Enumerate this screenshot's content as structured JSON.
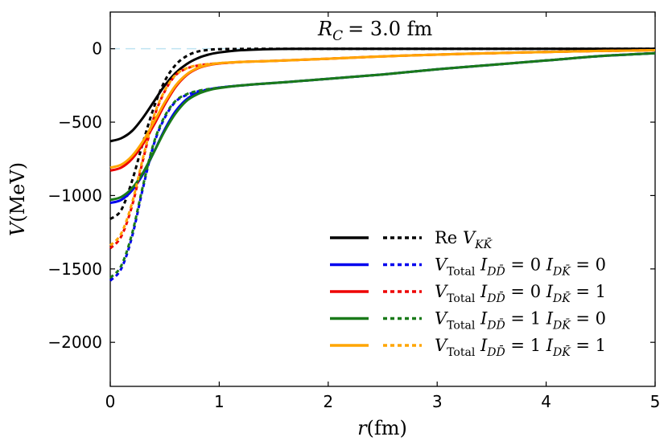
{
  "chart_data": {
    "type": "line",
    "title": "R_C = 3.0 fm",
    "title_parts": {
      "symbol": "R",
      "sub": "C",
      "rest": "= 3.0 fm"
    },
    "xlabel": "r(fm)",
    "xlabel_parts": {
      "var": "r",
      "unit": "(fm)"
    },
    "ylabel": "V(MeV)",
    "ylabel_parts": {
      "var": "V",
      "unit": "(MeV)"
    },
    "xlim": [
      0,
      5
    ],
    "ylim": [
      -2300,
      250
    ],
    "xticks": [
      0,
      1,
      2,
      3,
      4,
      5
    ],
    "yticks": [
      0,
      -500,
      -1000,
      -1500,
      -2000
    ],
    "xtick_labels": [
      "0",
      "1",
      "2",
      "3",
      "4",
      "5"
    ],
    "ytick_labels": [
      "0",
      "−500",
      "−1000",
      "−1500",
      "−2000"
    ],
    "legend_position": "lower-right",
    "zero_line_color": "#bfe3f2",
    "x": [
      0,
      0.1,
      0.2,
      0.3,
      0.4,
      0.5,
      0.6,
      0.7,
      0.8,
      0.9,
      1.0,
      1.2,
      1.4,
      1.6,
      2.0,
      2.5,
      3.0,
      3.5,
      4.0,
      4.5,
      5.0
    ],
    "series": [
      {
        "name": "Re V_KK solid",
        "color": "#000000",
        "style": "solid",
        "values": [
          -630,
          -610,
          -560,
          -470,
          -360,
          -250,
          -165,
          -105,
          -65,
          -40,
          -25,
          -10,
          -4,
          -1,
          0,
          0,
          0,
          0,
          0,
          0,
          0
        ]
      },
      {
        "name": "Re V_KK dashed",
        "color": "#000000",
        "style": "dashed",
        "values": [
          -1160,
          -1100,
          -900,
          -640,
          -400,
          -220,
          -110,
          -50,
          -20,
          -8,
          -3,
          -1,
          0,
          0,
          0,
          0,
          0,
          0,
          0,
          0,
          0
        ]
      },
      {
        "name": "Total I_DD=0 I_DK=0 solid",
        "color": "#0000ee",
        "style": "solid",
        "values": [
          -1050,
          -1030,
          -965,
          -855,
          -705,
          -550,
          -425,
          -345,
          -300,
          -278,
          -265,
          -250,
          -238,
          -228,
          -205,
          -175,
          -140,
          -110,
          -80,
          -50,
          -30
        ]
      },
      {
        "name": "Total I_DD=0 I_DK=0 dashed",
        "color": "#0000ee",
        "style": "dashed",
        "values": [
          -1580,
          -1500,
          -1280,
          -950,
          -650,
          -470,
          -360,
          -315,
          -292,
          -278,
          -265,
          -250,
          -238,
          -228,
          -205,
          -175,
          -140,
          -110,
          -80,
          -50,
          -30
        ]
      },
      {
        "name": "Total I_DD=0 I_DK=1 solid",
        "color": "#ee0000",
        "style": "solid",
        "values": [
          -830,
          -810,
          -750,
          -650,
          -520,
          -380,
          -260,
          -180,
          -135,
          -112,
          -100,
          -90,
          -85,
          -80,
          -68,
          -52,
          -40,
          -30,
          -22,
          -15,
          -10
        ]
      },
      {
        "name": "Total I_DD=0 I_DK=1 dashed",
        "color": "#ee0000",
        "style": "dashed",
        "values": [
          -1360,
          -1280,
          -1070,
          -760,
          -470,
          -290,
          -180,
          -135,
          -115,
          -105,
          -100,
          -90,
          -85,
          -80,
          -68,
          -52,
          -40,
          -30,
          -22,
          -15,
          -10
        ]
      },
      {
        "name": "Total I_DD=1 I_DK=0 solid",
        "color": "#1a7a1a",
        "style": "solid",
        "values": [
          -1030,
          -1010,
          -950,
          -845,
          -705,
          -560,
          -440,
          -355,
          -310,
          -283,
          -268,
          -250,
          -238,
          -228,
          -205,
          -175,
          -140,
          -110,
          -80,
          -50,
          -30
        ]
      },
      {
        "name": "Total I_DD=1 I_DK=0 dashed",
        "color": "#1a7a1a",
        "style": "dashed",
        "values": [
          -1560,
          -1480,
          -1260,
          -935,
          -640,
          -460,
          -355,
          -310,
          -288,
          -275,
          -265,
          -250,
          -238,
          -228,
          -205,
          -175,
          -140,
          -110,
          -80,
          -50,
          -30
        ]
      },
      {
        "name": "Total I_DD=1 I_DK=1 solid",
        "color": "#ffa500",
        "style": "solid",
        "values": [
          -810,
          -790,
          -730,
          -630,
          -500,
          -365,
          -250,
          -175,
          -132,
          -110,
          -98,
          -90,
          -85,
          -80,
          -68,
          -52,
          -40,
          -30,
          -22,
          -15,
          -10
        ]
      },
      {
        "name": "Total I_DD=1 I_DK=1 dashed",
        "color": "#ffa500",
        "style": "dashed",
        "values": [
          -1340,
          -1260,
          -1050,
          -745,
          -460,
          -285,
          -178,
          -133,
          -113,
          -104,
          -98,
          -90,
          -85,
          -80,
          -68,
          -52,
          -40,
          -30,
          -22,
          -15,
          -10
        ]
      }
    ],
    "legend": [
      {
        "color": "#000000",
        "prefix": "Re",
        "symbol": "V",
        "sub": "KK̄",
        "rest": ""
      },
      {
        "color": "#0000ee",
        "prefix": "",
        "symbol": "V",
        "sub": "Total",
        "rest": "I_DD̄ = 0  I_DK̄ = 0",
        "i1": "DD̄",
        "v1": "= 0",
        "i2": "DK̄",
        "v2": "= 0"
      },
      {
        "color": "#ee0000",
        "prefix": "",
        "symbol": "V",
        "sub": "Total",
        "rest": "I_DD̄ = 0  I_DK̄ = 1",
        "i1": "DD̄",
        "v1": "= 0",
        "i2": "DK̄",
        "v2": "= 1"
      },
      {
        "color": "#1a7a1a",
        "prefix": "",
        "symbol": "V",
        "sub": "Total",
        "rest": "I_DD̄ = 1  I_DK̄ = 0",
        "i1": "DD̄",
        "v1": "= 1",
        "i2": "DK̄",
        "v2": "= 0"
      },
      {
        "color": "#ffa500",
        "prefix": "",
        "symbol": "V",
        "sub": "Total",
        "rest": "I_DD̄ = 1  I_DK̄ = 1",
        "i1": "DD̄",
        "v1": "= 1",
        "i2": "DK̄",
        "v2": "= 1"
      }
    ]
  }
}
